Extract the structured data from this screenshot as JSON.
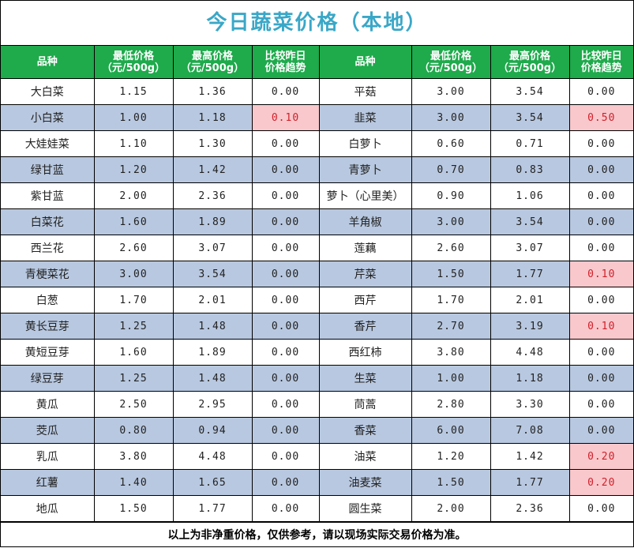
{
  "title": "今日蔬菜价格（本地）",
  "headers": {
    "name": "品种",
    "low_l1": "最低价格",
    "low_l2": "（元/500g）",
    "high_l1": "最高价格",
    "high_l2": "（元/500g）",
    "trend_l1": "比较昨日",
    "trend_l2": "价格趋势"
  },
  "colors": {
    "header_bg": "#1faa4c",
    "title_text": "#3aa7c7",
    "row_shade": "#b8c8e0",
    "positive_bg": "#f8c8cc",
    "positive_text": "#d0202a"
  },
  "rows": [
    {
      "left": {
        "name": "大白菜",
        "low": "1.15",
        "high": "1.36",
        "change": "0.00"
      },
      "right": {
        "name": "平菇",
        "low": "3.00",
        "high": "3.54",
        "change": "0.00"
      }
    },
    {
      "left": {
        "name": "小白菜",
        "low": "1.00",
        "high": "1.18",
        "change": "0.10"
      },
      "right": {
        "name": "韭菜",
        "low": "3.00",
        "high": "3.54",
        "change": "0.50"
      }
    },
    {
      "left": {
        "name": "大娃娃菜",
        "low": "1.10",
        "high": "1.30",
        "change": "0.00"
      },
      "right": {
        "name": "白萝卜",
        "low": "0.60",
        "high": "0.71",
        "change": "0.00"
      }
    },
    {
      "left": {
        "name": "绿甘蓝",
        "low": "1.20",
        "high": "1.42",
        "change": "0.00"
      },
      "right": {
        "name": "青萝卜",
        "low": "0.70",
        "high": "0.83",
        "change": "0.00"
      }
    },
    {
      "left": {
        "name": "紫甘蓝",
        "low": "2.00",
        "high": "2.36",
        "change": "0.00"
      },
      "right": {
        "name": "萝卜（心里美）",
        "low": "0.90",
        "high": "1.06",
        "change": "0.00"
      }
    },
    {
      "left": {
        "name": "白菜花",
        "low": "1.60",
        "high": "1.89",
        "change": "0.00"
      },
      "right": {
        "name": "羊角椒",
        "low": "3.00",
        "high": "3.54",
        "change": "0.00"
      }
    },
    {
      "left": {
        "name": "西兰花",
        "low": "2.60",
        "high": "3.07",
        "change": "0.00"
      },
      "right": {
        "name": "莲藕",
        "low": "2.60",
        "high": "3.07",
        "change": "0.00"
      }
    },
    {
      "left": {
        "name": "青梗菜花",
        "low": "3.00",
        "high": "3.54",
        "change": "0.00"
      },
      "right": {
        "name": "芹菜",
        "low": "1.50",
        "high": "1.77",
        "change": "0.10"
      }
    },
    {
      "left": {
        "name": "白葱",
        "low": "1.70",
        "high": "2.01",
        "change": "0.00"
      },
      "right": {
        "name": "西芹",
        "low": "1.70",
        "high": "2.01",
        "change": "0.00"
      }
    },
    {
      "left": {
        "name": "黄长豆芽",
        "low": "1.25",
        "high": "1.48",
        "change": "0.00"
      },
      "right": {
        "name": "香芹",
        "low": "2.70",
        "high": "3.19",
        "change": "0.10"
      }
    },
    {
      "left": {
        "name": "黄短豆芽",
        "low": "1.60",
        "high": "1.89",
        "change": "0.00"
      },
      "right": {
        "name": "西红柿",
        "low": "3.80",
        "high": "4.48",
        "change": "0.00"
      }
    },
    {
      "left": {
        "name": "绿豆芽",
        "low": "1.25",
        "high": "1.48",
        "change": "0.00"
      },
      "right": {
        "name": "生菜",
        "low": "1.00",
        "high": "1.18",
        "change": "0.00"
      }
    },
    {
      "left": {
        "name": "黄瓜",
        "low": "2.50",
        "high": "2.95",
        "change": "0.00"
      },
      "right": {
        "name": "茼蒿",
        "low": "2.80",
        "high": "3.30",
        "change": "0.00"
      }
    },
    {
      "left": {
        "name": "茭瓜",
        "low": "0.80",
        "high": "0.94",
        "change": "0.00"
      },
      "right": {
        "name": "香菜",
        "low": "6.00",
        "high": "7.08",
        "change": "0.00"
      }
    },
    {
      "left": {
        "name": "乳瓜",
        "low": "3.80",
        "high": "4.48",
        "change": "0.00"
      },
      "right": {
        "name": "油菜",
        "low": "1.20",
        "high": "1.42",
        "change": "0.20"
      }
    },
    {
      "left": {
        "name": "红薯",
        "low": "1.40",
        "high": "1.65",
        "change": "0.00"
      },
      "right": {
        "name": "油麦菜",
        "low": "1.50",
        "high": "1.77",
        "change": "0.20"
      }
    },
    {
      "left": {
        "name": "地瓜",
        "low": "1.50",
        "high": "1.77",
        "change": "0.00"
      },
      "right": {
        "name": "圆生菜",
        "low": "2.00",
        "high": "2.36",
        "change": "0.00"
      }
    }
  ],
  "footer": "以上为非净重价格，仅供参考，请以现场实际交易价格为准。"
}
